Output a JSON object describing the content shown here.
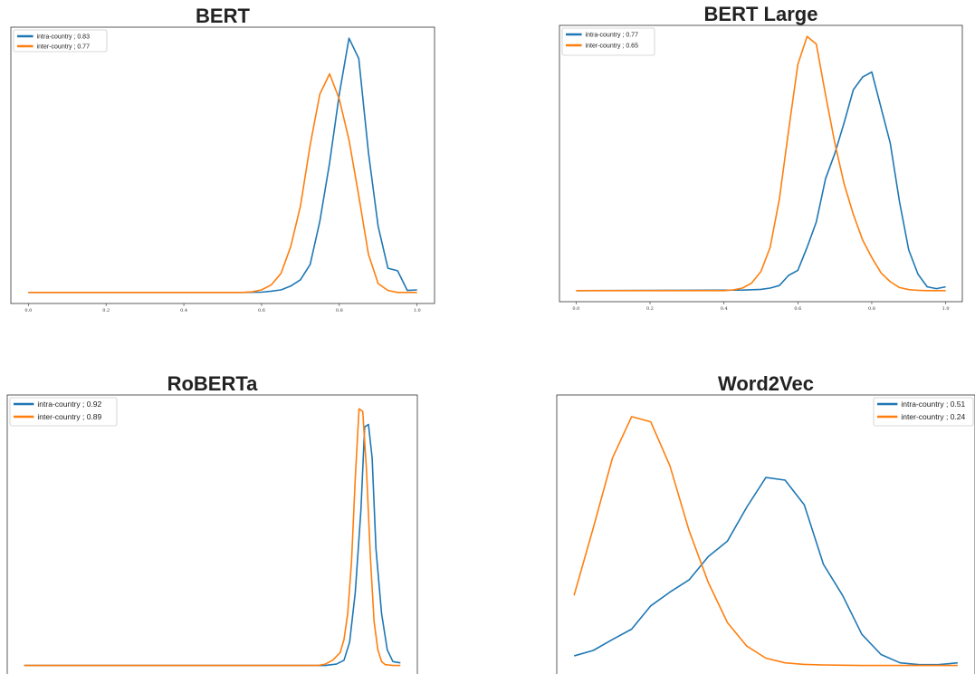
{
  "chart_data": [
    {
      "type": "line",
      "title": "BERT",
      "xlim": [
        0.0,
        1.0
      ],
      "xticks": [
        "0.0",
        "0.2",
        "0.4",
        "0.6",
        "0.8",
        "1.0"
      ],
      "legend_position": "top-left",
      "series": [
        {
          "name": "intra-country ; 0.83",
          "color": "#1f77b4",
          "x": [
            0.0,
            0.55,
            0.6,
            0.625,
            0.65,
            0.675,
            0.7,
            0.725,
            0.75,
            0.775,
            0.8,
            0.825,
            0.85,
            0.875,
            0.9,
            0.925,
            0.95,
            0.975,
            1.0
          ],
          "y": [
            0.0,
            0.0,
            0.001,
            0.005,
            0.01,
            0.025,
            0.05,
            0.11,
            0.28,
            0.51,
            0.78,
            1.0,
            0.92,
            0.55,
            0.26,
            0.095,
            0.085,
            0.008,
            0.01
          ]
        },
        {
          "name": "inter-country ; 0.77",
          "color": "#ff7f0e",
          "x": [
            0.0,
            0.55,
            0.575,
            0.6,
            0.625,
            0.65,
            0.675,
            0.7,
            0.725,
            0.75,
            0.775,
            0.8,
            0.825,
            0.85,
            0.875,
            0.9,
            0.925,
            0.95,
            1.0
          ],
          "y": [
            0.0,
            0.0,
            0.002,
            0.01,
            0.03,
            0.075,
            0.18,
            0.34,
            0.58,
            0.78,
            0.86,
            0.76,
            0.6,
            0.38,
            0.15,
            0.035,
            0.008,
            0.0,
            0.0
          ]
        }
      ]
    },
    {
      "type": "line",
      "title": "BERT Large",
      "xlim": [
        0.0,
        1.0
      ],
      "xticks": [
        "0.0",
        "0.2",
        "0.4",
        "0.6",
        "0.8",
        "1.0"
      ],
      "legend_position": "top-left",
      "series": [
        {
          "name": "intra-country ; 0.77",
          "color": "#1f77b4",
          "x": [
            0.0,
            0.45,
            0.5,
            0.525,
            0.55,
            0.575,
            0.6,
            0.625,
            0.65,
            0.675,
            0.7,
            0.725,
            0.75,
            0.775,
            0.8,
            0.825,
            0.85,
            0.875,
            0.9,
            0.925,
            0.95,
            0.975,
            1.0
          ],
          "y": [
            0.0,
            0.002,
            0.005,
            0.01,
            0.02,
            0.06,
            0.08,
            0.17,
            0.27,
            0.44,
            0.54,
            0.66,
            0.79,
            0.84,
            0.86,
            0.72,
            0.58,
            0.35,
            0.16,
            0.065,
            0.015,
            0.008,
            0.015
          ]
        },
        {
          "name": "inter-country ; 0.65",
          "color": "#ff7f0e",
          "x": [
            0.0,
            0.4,
            0.425,
            0.45,
            0.475,
            0.5,
            0.525,
            0.55,
            0.575,
            0.6,
            0.625,
            0.65,
            0.675,
            0.7,
            0.725,
            0.75,
            0.775,
            0.8,
            0.825,
            0.85,
            0.875,
            0.9,
            0.925,
            0.95,
            1.0
          ],
          "y": [
            0.0,
            0.0,
            0.003,
            0.01,
            0.03,
            0.075,
            0.17,
            0.36,
            0.63,
            0.89,
            1.0,
            0.97,
            0.77,
            0.58,
            0.42,
            0.3,
            0.2,
            0.13,
            0.07,
            0.035,
            0.012,
            0.004,
            0.001,
            0.0,
            0.0
          ]
        }
      ]
    },
    {
      "type": "line",
      "title": "RoBERTa",
      "xlim": [
        0.0,
        1.0
      ],
      "legend_position": "top-left",
      "series": [
        {
          "name": "intra-country ; 0.92",
          "color": "#1f77b4",
          "x": [
            0.0,
            0.8,
            0.83,
            0.85,
            0.865,
            0.88,
            0.895,
            0.905,
            0.915,
            0.925,
            0.935,
            0.95,
            0.965,
            0.98,
            1.0
          ],
          "y": [
            0.0,
            0.0,
            0.005,
            0.02,
            0.09,
            0.28,
            0.6,
            0.92,
            0.93,
            0.8,
            0.45,
            0.2,
            0.06,
            0.015,
            0.01
          ]
        },
        {
          "name": "inter-country ; 0.89",
          "color": "#ff7f0e",
          "x": [
            0.0,
            0.78,
            0.8,
            0.82,
            0.84,
            0.85,
            0.86,
            0.87,
            0.88,
            0.89,
            0.9,
            0.91,
            0.92,
            0.93,
            0.94,
            0.95,
            0.96,
            0.98,
            1.0
          ],
          "y": [
            0.0,
            0.0,
            0.005,
            0.02,
            0.05,
            0.1,
            0.2,
            0.4,
            0.72,
            0.99,
            0.98,
            0.75,
            0.42,
            0.17,
            0.06,
            0.015,
            0.003,
            0.0,
            0.0
          ]
        }
      ]
    },
    {
      "type": "line",
      "title": "Word2Vec",
      "xlim": [
        0.0,
        1.0
      ],
      "legend_position": "top-right",
      "series": [
        {
          "name": "intra-country ; 0.51",
          "color": "#1f77b4",
          "x": [
            0.0,
            0.05,
            0.1,
            0.15,
            0.2,
            0.25,
            0.3,
            0.35,
            0.4,
            0.45,
            0.5,
            0.55,
            0.6,
            0.65,
            0.7,
            0.75,
            0.8,
            0.85,
            0.9,
            0.95,
            1.0
          ],
          "y": [
            0.037,
            0.058,
            0.1,
            0.14,
            0.23,
            0.283,
            0.33,
            0.42,
            0.48,
            0.61,
            0.725,
            0.715,
            0.62,
            0.39,
            0.27,
            0.12,
            0.042,
            0.01,
            0.003,
            0.003,
            0.01
          ]
        },
        {
          "name": "inter-country ; 0.24",
          "color": "#ff7f0e",
          "x": [
            0.0,
            0.05,
            0.1,
            0.15,
            0.2,
            0.25,
            0.3,
            0.35,
            0.4,
            0.45,
            0.5,
            0.55,
            0.6,
            0.65,
            0.7,
            0.75,
            0.8,
            0.85,
            0.9,
            0.95,
            1.0
          ],
          "y": [
            0.27,
            0.53,
            0.8,
            0.96,
            0.94,
            0.77,
            0.52,
            0.32,
            0.165,
            0.075,
            0.028,
            0.01,
            0.004,
            0.002,
            0.001,
            0.0,
            0.0,
            0.0,
            0.0,
            0.0,
            0.0
          ]
        }
      ]
    }
  ]
}
